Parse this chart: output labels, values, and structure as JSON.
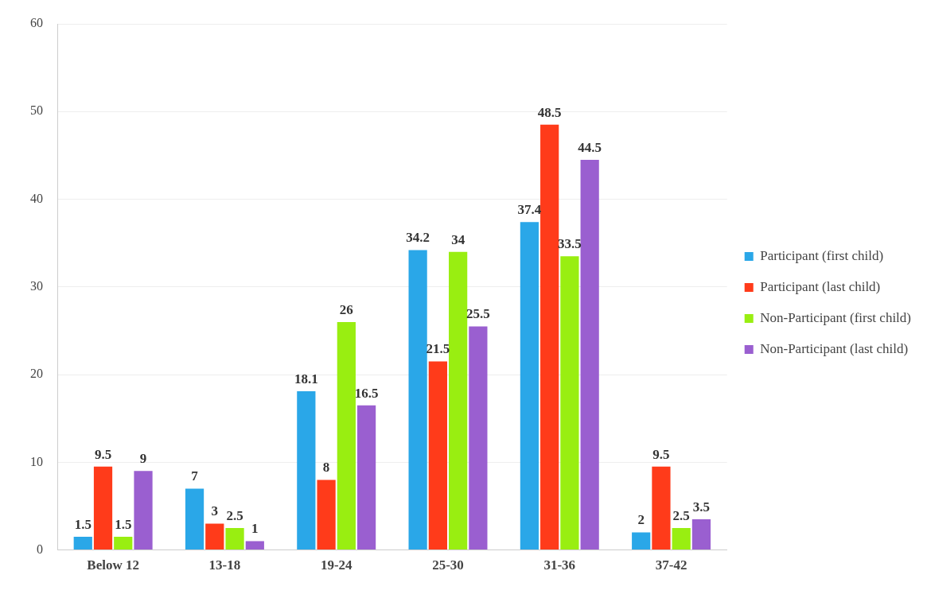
{
  "chart_data": {
    "type": "bar",
    "categories": [
      "Below 12",
      "13-18",
      "19-24",
      "25-30",
      "31-36",
      "37-42"
    ],
    "series": [
      {
        "name": "Participant (first child)",
        "color": "#2aa7e8",
        "values": [
          1.5,
          7,
          18.1,
          34.2,
          37.4,
          2
        ]
      },
      {
        "name": "Participant (last child)",
        "color": "#ff3b1a",
        "values": [
          9.5,
          3,
          8,
          21.5,
          48.5,
          9.5
        ]
      },
      {
        "name": "Non-Participant (first child)",
        "color": "#99ee11",
        "values": [
          1.5,
          2.5,
          26,
          34,
          33.5,
          2.5
        ]
      },
      {
        "name": "Non-Participant (last child)",
        "color": "#9a5fd0",
        "values": [
          9,
          1,
          16.5,
          25.5,
          44.5,
          3.5
        ]
      }
    ],
    "ylim": [
      0,
      60
    ],
    "yticks": [
      0,
      10,
      20,
      30,
      40,
      50,
      60
    ],
    "grid": "y",
    "legend": "right",
    "data_labels": true
  }
}
